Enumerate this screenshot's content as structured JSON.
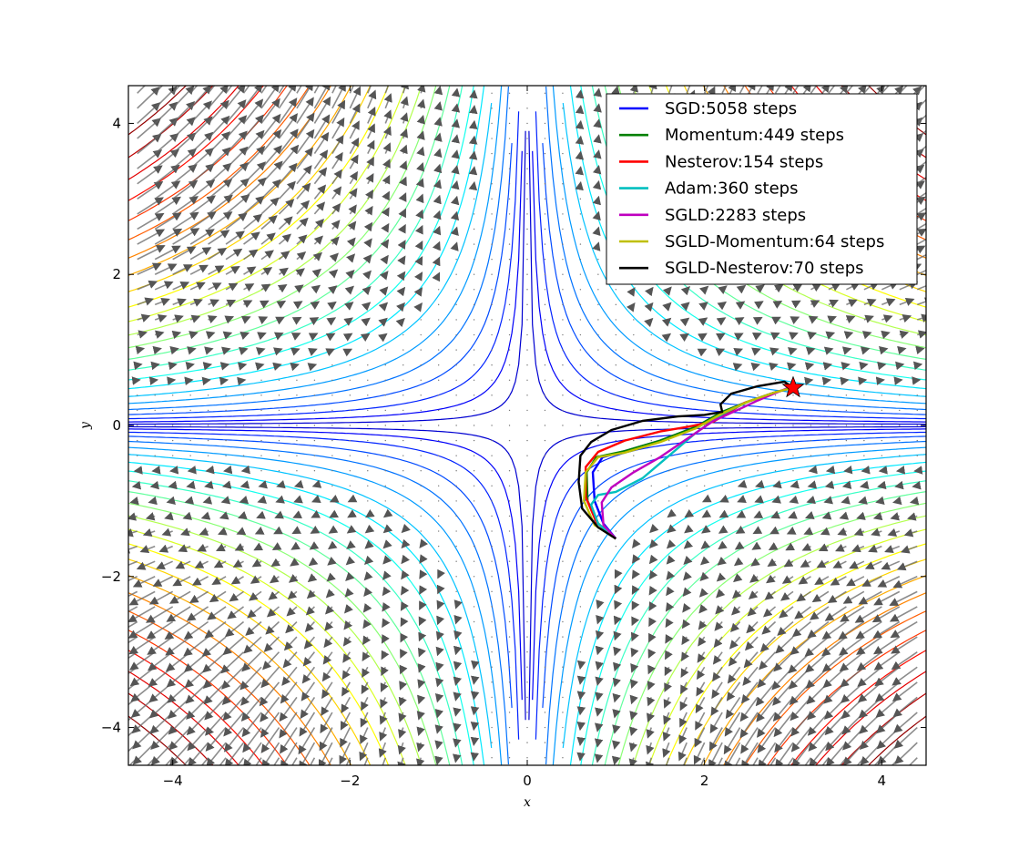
{
  "chart_data": {
    "type": "line",
    "title": "",
    "xlabel": "x",
    "ylabel": "y",
    "xlim": [
      -4.5,
      4.5
    ],
    "ylim": [
      -4.5,
      4.5
    ],
    "x_ticks": [
      -4,
      -2,
      0,
      2,
      4
    ],
    "y_ticks": [
      -4,
      -2,
      0,
      2,
      4
    ],
    "x_tick_labels": [
      "−4",
      "−2",
      "0",
      "2",
      "4"
    ],
    "y_tick_labels": [
      "−4",
      "−2",
      "0",
      "2",
      "4"
    ],
    "grid": false,
    "legend_position": "top-right",
    "background": "contour plot of loss surface with gradient quiver field (saddle at origin)",
    "start_point": [
      1.0,
      -1.5
    ],
    "target_point": [
      3.0,
      0.5
    ],
    "target_marker_color": "#ff0000",
    "series": [
      {
        "name": "SGD:5058 steps",
        "color": "#0000ff",
        "x": [
          1.0,
          0.86,
          0.76,
          0.74,
          0.85,
          1.1,
          1.5,
          1.9,
          2.2,
          2.5,
          2.8,
          3.0
        ],
        "y": [
          -1.5,
          -1.3,
          -1.0,
          -0.62,
          -0.42,
          -0.34,
          -0.2,
          -0.02,
          0.18,
          0.32,
          0.44,
          0.5
        ]
      },
      {
        "name": "Momentum:449 steps",
        "color": "#008000",
        "x": [
          1.0,
          0.8,
          0.68,
          0.67,
          0.78,
          1.1,
          1.5,
          1.9,
          2.2,
          2.5,
          2.8,
          3.0
        ],
        "y": [
          -1.5,
          -1.3,
          -1.0,
          -0.62,
          -0.42,
          -0.34,
          -0.2,
          -0.02,
          0.18,
          0.32,
          0.44,
          0.5
        ]
      },
      {
        "name": "Nesterov:154 steps",
        "color": "#ff0000",
        "x": [
          1.0,
          0.78,
          0.66,
          0.66,
          0.8,
          1.1,
          1.5,
          1.8,
          2.1,
          2.2,
          2.45,
          2.8,
          3.0
        ],
        "y": [
          -1.5,
          -1.28,
          -0.95,
          -0.55,
          -0.35,
          -0.2,
          -0.08,
          -0.02,
          0.05,
          0.12,
          0.3,
          0.44,
          0.5
        ]
      },
      {
        "name": "Adam:360 steps",
        "color": "#00bfbf",
        "x": [
          1.0,
          0.8,
          0.72,
          0.8,
          1.0,
          1.3,
          1.6,
          1.9,
          2.2,
          2.5,
          2.8,
          3.0
        ],
        "y": [
          -1.5,
          -1.3,
          -1.05,
          -0.92,
          -0.88,
          -0.7,
          -0.4,
          -0.1,
          0.15,
          0.32,
          0.44,
          0.5
        ]
      },
      {
        "name": "SGLD:2283 steps",
        "color": "#bf00bf",
        "x": [
          1.0,
          0.86,
          0.84,
          0.95,
          1.2,
          1.5,
          1.8,
          2.1,
          2.4,
          2.6,
          2.8,
          2.95
        ],
        "y": [
          -1.5,
          -1.32,
          -1.02,
          -0.82,
          -0.62,
          -0.42,
          -0.18,
          0.06,
          0.22,
          0.33,
          0.43,
          0.5
        ]
      },
      {
        "name": "SGLD-Momentum:64 steps",
        "color": "#bfbf00",
        "x": [
          1.0,
          0.76,
          0.64,
          0.66,
          0.8,
          1.1,
          1.5,
          1.9,
          2.2,
          2.5,
          2.8,
          3.0
        ],
        "y": [
          -1.5,
          -1.32,
          -1.0,
          -0.62,
          -0.42,
          -0.36,
          -0.22,
          -0.04,
          0.16,
          0.32,
          0.44,
          0.5
        ]
      },
      {
        "name": "SGLD-Nesterov:70 steps",
        "color": "#000000",
        "x": [
          1.0,
          0.8,
          0.62,
          0.58,
          0.6,
          0.72,
          0.95,
          1.3,
          1.7,
          2.0,
          2.2,
          2.18,
          2.3,
          2.6,
          2.9,
          3.0
        ],
        "y": [
          -1.5,
          -1.35,
          -1.1,
          -0.75,
          -0.4,
          -0.22,
          -0.06,
          0.06,
          0.12,
          0.14,
          0.18,
          0.28,
          0.42,
          0.52,
          0.58,
          0.5
        ]
      }
    ]
  }
}
